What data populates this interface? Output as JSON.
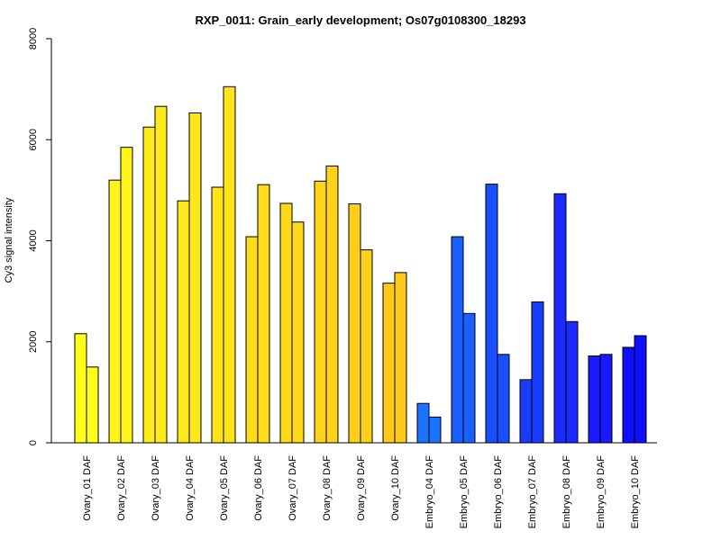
{
  "chart_data": {
    "type": "bar",
    "title": "RXP_0011: Grain_early development; Os07g0108300_18293",
    "xlabel": "",
    "ylabel": "Cy3 signal intensity",
    "ylim": [
      0,
      8000
    ],
    "yticks": [
      "0",
      "2000",
      "4000",
      "6000",
      "8000"
    ],
    "categories": [
      "Ovary_01 DAF",
      "Ovary_02 DAF",
      "Ovary_03 DAF",
      "Ovary_04 DAF",
      "Ovary_05 DAF",
      "Ovary_06 DAF",
      "Ovary_07 DAF",
      "Ovary_08 DAF",
      "Ovary_09 DAF",
      "Ovary_10 DAF",
      "Embryo_04 DAF",
      "Embryo_05 DAF",
      "Embryo_06 DAF",
      "Embryo_07 DAF",
      "Embryo_08 DAF",
      "Embryo_09 DAF",
      "Embryo_10 DAF"
    ],
    "series": [
      {
        "values": [
          2160,
          5200,
          6250,
          4790,
          5060,
          4080,
          4740,
          5180,
          4730,
          3160,
          780,
          4080,
          5120,
          1250,
          4930,
          1720,
          1890
        ]
      },
      {
        "values": [
          1500,
          5850,
          6660,
          6530,
          7050,
          5110,
          4370,
          5480,
          3820,
          3370,
          510,
          2560,
          1750,
          2790,
          2400,
          1750,
          2120
        ]
      }
    ],
    "colors": [
      "#ffff1a",
      "#fff51a",
      "#ffeb1a",
      "#ffe81a",
      "#ffe31a",
      "#ffdc1a",
      "#ffd81a",
      "#ffd31a",
      "#ffcf1a",
      "#ffca1a",
      "#1a74ff",
      "#1a5fff",
      "#1a4fff",
      "#1a3cff",
      "#1a2aff",
      "#1a1aff",
      "#0f0fff"
    ],
    "grid": false,
    "legend": "none"
  }
}
